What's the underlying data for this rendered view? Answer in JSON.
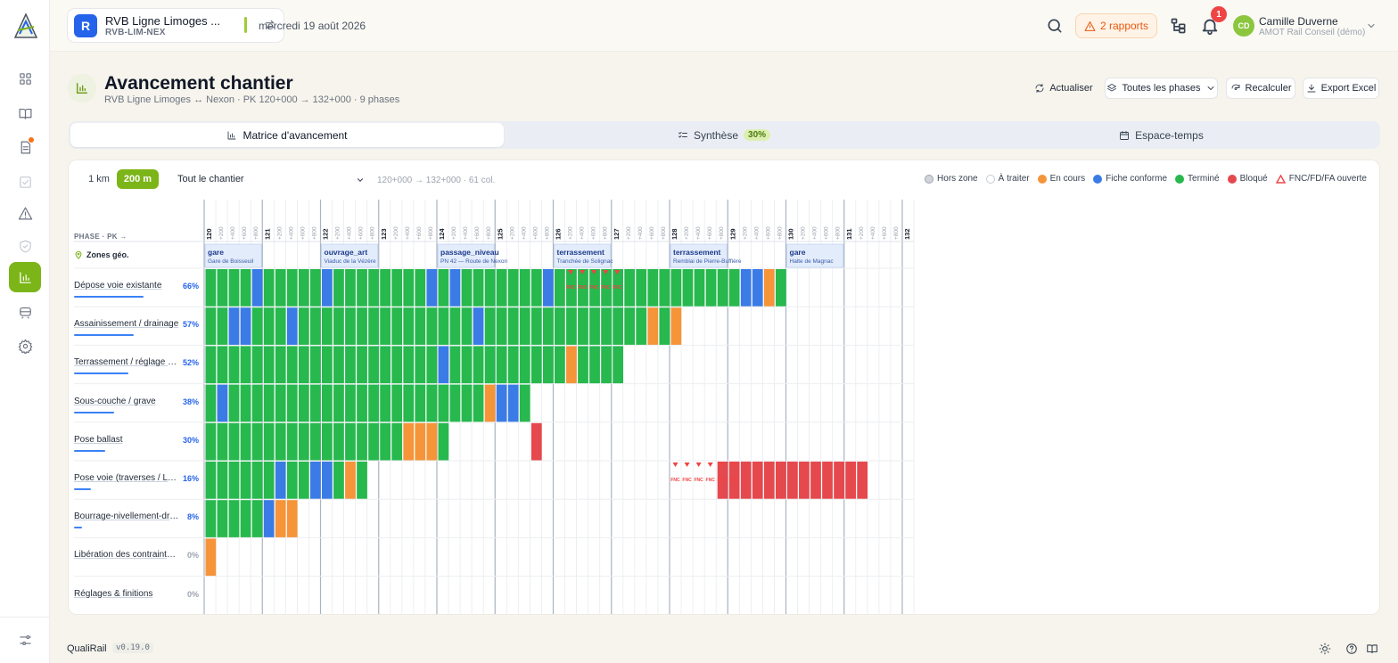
{
  "app": {
    "name": "QualiRail",
    "version": "v0.19.0"
  },
  "project": {
    "badge": "R",
    "name": "RVB Ligne Limoges ...",
    "code": "RVB-LIM-NEX",
    "date": "mercredi 19 août 2026"
  },
  "topbar": {
    "reports_label": "2 rapports",
    "notifications_count": "1",
    "user_initials": "CD",
    "user_name": "Camille Duverne",
    "user_org": "AMOT Rail Conseil (démo)"
  },
  "sidebar": {
    "items": [
      {
        "icon": "dashboard-icon"
      },
      {
        "icon": "book-icon"
      },
      {
        "icon": "document-icon",
        "dot": true
      },
      {
        "icon": "checklist-icon",
        "dim": true
      },
      {
        "icon": "warning-icon"
      },
      {
        "icon": "shield-icon",
        "dim": true
      },
      {
        "icon": "chart-icon",
        "active": true
      },
      {
        "icon": "train-icon"
      },
      {
        "icon": "gear-icon"
      }
    ]
  },
  "header": {
    "title": "Avancement chantier",
    "subtitle": "RVB Ligne Limoges ↔ Nexon · PK 120+000 → 132+000 · 9 phases",
    "btn_refresh": "Actualiser",
    "btn_phases": "Toutes les phases",
    "btn_recalc": "Recalculer",
    "btn_export": "Export Excel"
  },
  "tabs": [
    {
      "label": "Matrice d'avancement"
    },
    {
      "label": "Synthèse",
      "badge": "30%"
    },
    {
      "label": "Espace-temps"
    }
  ],
  "toolbar": {
    "opt_1km": "1 km",
    "opt_200m": "200 m",
    "scope": "Tout le chantier",
    "range": "120+000 → 132+000 · 61 col."
  },
  "legend": [
    {
      "label": "Hors zone",
      "color": "#d1d5db"
    },
    {
      "label": "À traiter",
      "color": "#ffffff"
    },
    {
      "label": "En cours",
      "color": "#f59439"
    },
    {
      "label": "Fiche conforme",
      "color": "#3b7be5"
    },
    {
      "label": "Terminé",
      "color": "#27b84e"
    },
    {
      "label": "Bloqué",
      "color": "#e5484d"
    },
    {
      "label": "FNC/FD/FA ouverte",
      "color": "#ef4444"
    }
  ],
  "matrix": {
    "phase_header": "PHASE · PK →",
    "zones_label": "Zones géo.",
    "sub_ticks": [
      "+200",
      "+400",
      "+600",
      "+800"
    ],
    "km_labels": [
      "120",
      "121",
      "122",
      "123",
      "124",
      "125",
      "126",
      "127",
      "128",
      "129",
      "130",
      "131",
      "132"
    ],
    "zones": [
      {
        "type": "gare",
        "name": "Gare de Boisseuil",
        "pk_start": 120.0,
        "pk_end": 121.0
      },
      {
        "type": "ouvrage_art",
        "name": "Viaduc de la Vézère",
        "pk_start": 122.0,
        "pk_end": 123.0
      },
      {
        "type": "passage_niveau",
        "name": "PN 42 — Route de Nexon",
        "pk_start": 124.0,
        "pk_end": 125.0
      },
      {
        "type": "terrassement",
        "name": "Tranchée de Solignac",
        "pk_start": 126.0,
        "pk_end": 127.0
      },
      {
        "type": "terrassement",
        "name": "Remblai de Pierre-Buffière",
        "pk_start": 128.0,
        "pk_end": 129.0
      },
      {
        "type": "gare",
        "name": "Halte de Magnac",
        "pk_start": 130.0,
        "pk_end": 131.0
      }
    ],
    "status_key": {
      "T": "Terminé",
      "F": "Fiche conforme",
      "C": "En cours",
      "B": "Bloqué",
      ".": "À traiter"
    },
    "fnc_marker": "FNC",
    "phases": [
      {
        "name": "Dépose voie existante",
        "pct": "66%",
        "pct_value": 66,
        "cells": "TTTTFTTTTTFTTTTTTTTFTFTTTTTTTFTTTTTTTTTTTTTTTTFFCT",
        "fnc": [
          31,
          32,
          33,
          34,
          35
        ]
      },
      {
        "name": "Assainissement / drainage",
        "pct": "57%",
        "pct_value": 57,
        "cells": "TTFFTTTFTTTTTTTTTTTTTTTFTTTTTTTTTTTTTTCTC",
        "fnc": []
      },
      {
        "name": "Terrassement / réglage pla...",
        "pct": "52%",
        "pct_value": 52,
        "cells": "TTTTTTTTTTTTTTTTTTTTFTTTTTTTTTTCTTTT",
        "fnc": []
      },
      {
        "name": "Sous-couche / grave",
        "pct": "38%",
        "pct_value": 38,
        "cells": "TFTTTTTTTTTTTTTTTTTTTTTTCFFT",
        "fnc": []
      },
      {
        "name": "Pose ballast",
        "pct": "30%",
        "pct_value": 30,
        "cells": "TTTTTTTTTTTTTTTTTCCCT.......B",
        "fnc": []
      },
      {
        "name": "Pose voie (traverses / LRS)",
        "pct": "16%",
        "pct_value": 16,
        "cells": "TTTTTTFTTFFTCT..............................BBBBBBBBBBBBB",
        "fnc": [
          40,
          41,
          42,
          43,
          44,
          45
        ]
      },
      {
        "name": "Bourrage-nivellement-dress...",
        "pct": "8%",
        "pct_value": 8,
        "cells": "TTTTTFCC",
        "fnc": []
      },
      {
        "name": "Libération des contraintes /...",
        "pct": "0%",
        "pct_value": 0,
        "cells": "C",
        "fnc": []
      },
      {
        "name": "Réglages & finitions",
        "pct": "0%",
        "pct_value": 0,
        "cells": "",
        "fnc": []
      }
    ]
  }
}
